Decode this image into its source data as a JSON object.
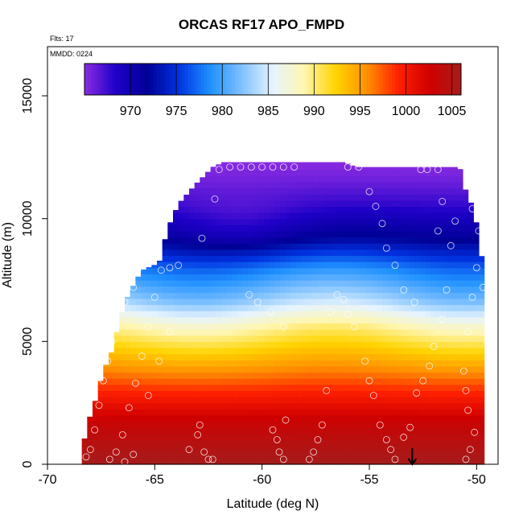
{
  "chart_data": {
    "type": "heatmap",
    "title": "ORCAS RF17 APO_FMPD",
    "annotations": [
      "Flts: 17",
      "MMDD: 0224"
    ],
    "xlabel": "Latitude (deg N)",
    "ylabel": "Altitude (m)",
    "xlim": [
      -70,
      -49
    ],
    "ylim": [
      0,
      17000
    ],
    "x_ticks": [
      -70,
      -65,
      -60,
      -55,
      -50
    ],
    "y_ticks": [
      0,
      5000,
      10000,
      15000
    ],
    "colorbar": {
      "ticks": [
        970,
        975,
        980,
        985,
        990,
        995,
        1000,
        1005
      ],
      "range": [
        965,
        1006
      ],
      "colors": [
        "#8a2be2",
        "#1f00c8",
        "#000095",
        "#0032e0",
        "#1e90ff",
        "#7ec0ff",
        "#e6f4ff",
        "#fff6b0",
        "#ffd400",
        "#ff9000",
        "#ff2000",
        "#d00000",
        "#a51c1c"
      ]
    },
    "envelope": [
      {
        "lat": -68.4,
        "top": 300
      },
      {
        "lat": -68.2,
        "top": 1500
      },
      {
        "lat": -67.8,
        "top": 2500
      },
      {
        "lat": -67.4,
        "top": 3800
      },
      {
        "lat": -67.0,
        "top": 4600
      },
      {
        "lat": -66.6,
        "top": 6000
      },
      {
        "lat": -66.2,
        "top": 7000
      },
      {
        "lat": -65.6,
        "top": 7900
      },
      {
        "lat": -64.8,
        "top": 8200
      },
      {
        "lat": -64.4,
        "top": 9600
      },
      {
        "lat": -63.9,
        "top": 10600
      },
      {
        "lat": -63.1,
        "top": 11400
      },
      {
        "lat": -62.3,
        "top": 12100
      },
      {
        "lat": -61.8,
        "top": 12300
      },
      {
        "lat": -56.2,
        "top": 12300
      },
      {
        "lat": -55.6,
        "top": 12100
      },
      {
        "lat": -50.8,
        "top": 12100
      },
      {
        "lat": -50.5,
        "top": 11100
      },
      {
        "lat": -50.1,
        "top": 10300
      },
      {
        "lat": -49.8,
        "top": 8500
      },
      {
        "lat": -49.6,
        "top": 8300
      }
    ],
    "value_profile": [
      {
        "alt": 0,
        "value": 1006
      },
      {
        "alt": 1800,
        "value": 1003
      },
      {
        "alt": 3000,
        "value": 999
      },
      {
        "alt": 4300,
        "value": 994
      },
      {
        "alt": 5600,
        "value": 989
      },
      {
        "alt": 6700,
        "value": 983
      },
      {
        "alt": 8000,
        "value": 978
      },
      {
        "alt": 9200,
        "value": 972
      },
      {
        "alt": 10500,
        "value": 968
      },
      {
        "alt": 11500,
        "value": 966
      },
      {
        "alt": 12300,
        "value": 965
      }
    ],
    "samples": [
      [
        -68.2,
        300
      ],
      [
        -68.0,
        600
      ],
      [
        -67.8,
        1400
      ],
      [
        -67.6,
        2400
      ],
      [
        -67.4,
        3400
      ],
      [
        -67.2,
        4200
      ],
      [
        -67.0,
        5000
      ],
      [
        -66.8,
        5800
      ],
      [
        -66.4,
        6600
      ],
      [
        -66.0,
        7200
      ],
      [
        -65.8,
        7900
      ],
      [
        -67.1,
        200
      ],
      [
        -66.8,
        500
      ],
      [
        -66.5,
        1200
      ],
      [
        -66.2,
        2300
      ],
      [
        -65.9,
        3300
      ],
      [
        -65.6,
        4400
      ],
      [
        -65.3,
        5600
      ],
      [
        -65.0,
        6800
      ],
      [
        -64.7,
        7900
      ],
      [
        -64.3,
        8000
      ],
      [
        -66.4,
        100
      ],
      [
        -66.0,
        400
      ],
      [
        -65.3,
        2800
      ],
      [
        -64.8,
        4200
      ],
      [
        -64.3,
        5400
      ],
      [
        -63.9,
        8100
      ],
      [
        -63.4,
        600
      ],
      [
        -63.0,
        1200
      ],
      [
        -62.9,
        1600
      ],
      [
        -62.7,
        500
      ],
      [
        -62.5,
        200
      ],
      [
        -62.3,
        200
      ],
      [
        -62.8,
        9200
      ],
      [
        -62.2,
        10800
      ],
      [
        -62.0,
        12000
      ],
      [
        -61.5,
        12100
      ],
      [
        -61.0,
        12100
      ],
      [
        -60.5,
        12100
      ],
      [
        -60.0,
        12100
      ],
      [
        -59.5,
        12100
      ],
      [
        -59.0,
        12100
      ],
      [
        -58.5,
        12100
      ],
      [
        -60.6,
        6900
      ],
      [
        -60.2,
        6600
      ],
      [
        -59.6,
        6200
      ],
      [
        -59.0,
        5600
      ],
      [
        -59.5,
        1400
      ],
      [
        -59.3,
        1000
      ],
      [
        -59.2,
        500
      ],
      [
        -59.0,
        200
      ],
      [
        -58.9,
        1800
      ],
      [
        -57.8,
        200
      ],
      [
        -57.6,
        500
      ],
      [
        -57.4,
        1000
      ],
      [
        -57.2,
        1600
      ],
      [
        -57.0,
        3000
      ],
      [
        -56.8,
        6200
      ],
      [
        -56.5,
        6900
      ],
      [
        -56.2,
        6700
      ],
      [
        -56.0,
        6100
      ],
      [
        -55.7,
        5600
      ],
      [
        -55.2,
        4200
      ],
      [
        -55.0,
        3400
      ],
      [
        -54.8,
        2800
      ],
      [
        -54.5,
        1600
      ],
      [
        -54.2,
        1000
      ],
      [
        -54.0,
        600
      ],
      [
        -53.8,
        200
      ],
      [
        -53.4,
        1100
      ],
      [
        -53.1,
        1500
      ],
      [
        -52.8,
        2900
      ],
      [
        -52.5,
        3400
      ],
      [
        -52.2,
        4000
      ],
      [
        -52.0,
        4800
      ],
      [
        -51.6,
        5900
      ],
      [
        -51.4,
        7100
      ],
      [
        -51.2,
        8900
      ],
      [
        -51.0,
        9900
      ],
      [
        -56.0,
        12100
      ],
      [
        -55.5,
        12100
      ],
      [
        -55.0,
        11100
      ],
      [
        -54.7,
        10500
      ],
      [
        -54.4,
        9800
      ],
      [
        -54.2,
        8800
      ],
      [
        -53.8,
        8100
      ],
      [
        -53.4,
        7100
      ],
      [
        -52.9,
        6600
      ],
      [
        -52.6,
        12000
      ],
      [
        -52.3,
        12000
      ],
      [
        -51.8,
        12000
      ],
      [
        -51.6,
        10700
      ],
      [
        -51.8,
        9500
      ],
      [
        -50.5,
        200
      ],
      [
        -50.3,
        600
      ],
      [
        -50.1,
        1300
      ],
      [
        -50.4,
        2200
      ],
      [
        -50.5,
        3000
      ],
      [
        -50.6,
        3800
      ],
      [
        -50.4,
        5400
      ],
      [
        -50.2,
        6800
      ],
      [
        -50.0,
        8000
      ],
      [
        -50.2,
        10400
      ],
      [
        -49.9,
        9500
      ],
      [
        -49.7,
        7200
      ]
    ],
    "arrow_marker_lat": -53
  }
}
